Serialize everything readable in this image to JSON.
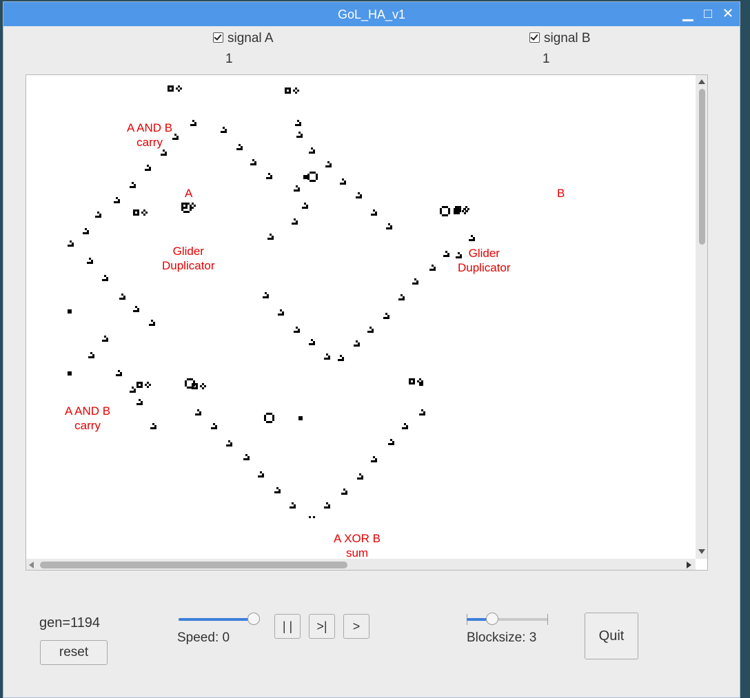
{
  "window": {
    "title": "GoL_HA_v1",
    "controls": [
      "minimize",
      "maximize",
      "close"
    ],
    "minimize_glyph": "▁",
    "maximize_glyph": "□",
    "close_glyph": "✕"
  },
  "signals": {
    "a": {
      "label": "signal A",
      "checked": true,
      "value": "1"
    },
    "b": {
      "label": "signal B",
      "checked": true,
      "value": "1"
    }
  },
  "canvas": {
    "labels": {
      "carry_top_1": "A AND B",
      "carry_top_2": "carry",
      "a": "A",
      "b": "B",
      "dup_left_1": "Glider",
      "dup_left_2": "Duplicator",
      "dup_right_1": "Glider",
      "dup_right_2": "Duplicator",
      "carry_bottom_1": "A AND B",
      "carry_bottom_2": "carry",
      "sum_1": "A XOR B",
      "sum_2": "sum"
    },
    "label_color": "#e60000",
    "cell_color": "#000000"
  },
  "controls": {
    "generation": "gen=1194",
    "reset_label": "reset",
    "pause_label": "| |",
    "step_label": ">|",
    "play_label": ">",
    "speed_caption": "Speed: 0",
    "speed_fraction": 1.0,
    "blocksize_caption": "Blocksize: 3",
    "blocksize_fraction": 0.28,
    "quit_label": "Quit",
    "accent": "#3d7fd9"
  }
}
